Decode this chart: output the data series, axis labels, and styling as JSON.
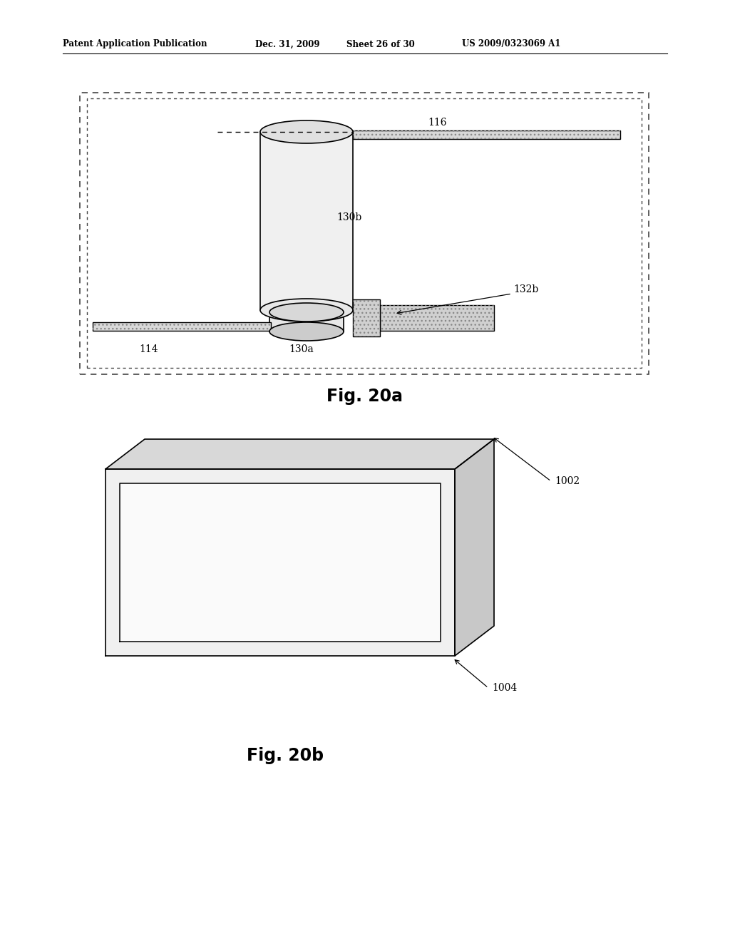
{
  "bg_color": "#ffffff",
  "header_text": "Patent Application Publication",
  "header_date": "Dec. 31, 2009",
  "header_sheet": "Sheet 26 of 30",
  "header_patent": "US 2009/0323069 A1",
  "fig20a_label": "Fig. 20a",
  "fig20b_label": "Fig. 20b",
  "label_114": "114",
  "label_116": "116",
  "label_130a": "130a",
  "label_130b": "130b",
  "label_132b": "132b",
  "label_1002": "1002",
  "label_1004": "1004"
}
